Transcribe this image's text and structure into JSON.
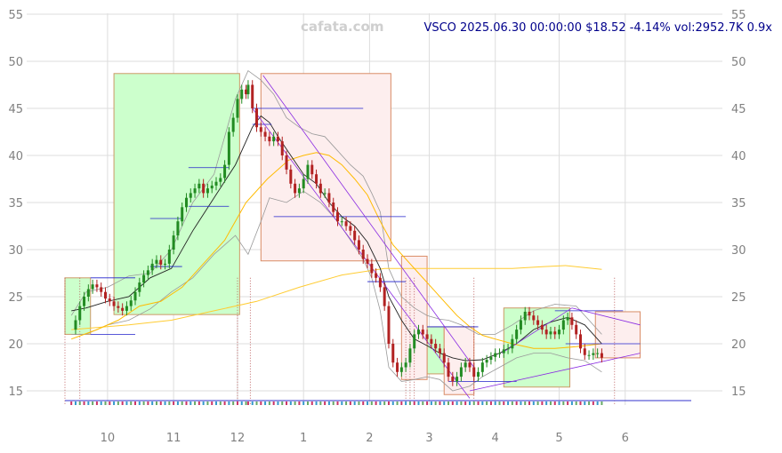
{
  "header": {
    "watermark": "cafata.com",
    "ticker_line": "VSCO 2025.06.30 00:00:00 $18.52 -4.14% vol:2952.7K 0.9x"
  },
  "chart_data": {
    "type": "candlestick",
    "y_range": [
      13,
      55
    ],
    "y_ticks": [
      15,
      20,
      25,
      30,
      35,
      40,
      45,
      50,
      55
    ],
    "x_ticks": [
      {
        "label": "10",
        "day": 20
      },
      {
        "label": "11",
        "day": 51
      },
      {
        "label": "12",
        "day": 81
      },
      {
        "label": "1",
        "day": 112
      },
      {
        "label": "2",
        "day": 143
      },
      {
        "label": "3",
        "day": 171
      },
      {
        "label": "4",
        "day": 202
      },
      {
        "label": "5",
        "day": 232
      },
      {
        "label": "6",
        "day": 263
      }
    ],
    "x_domain": [
      0,
      294
    ],
    "grid": true,
    "close_series": [
      [
        3,
        21.5
      ],
      [
        5,
        22.5
      ],
      [
        7,
        24
      ],
      [
        9,
        25
      ],
      [
        11,
        25.8
      ],
      [
        13,
        26.3
      ],
      [
        15,
        26
      ],
      [
        17,
        25.5
      ],
      [
        19,
        24.8
      ],
      [
        21,
        24.5
      ],
      [
        23,
        24
      ],
      [
        25,
        23.8
      ],
      [
        27,
        23.5
      ],
      [
        29,
        24
      ],
      [
        31,
        24.6
      ],
      [
        33,
        25.5
      ],
      [
        35,
        26.5
      ],
      [
        37,
        27.3
      ],
      [
        39,
        27.8
      ],
      [
        41,
        28.5
      ],
      [
        43,
        28.9
      ],
      [
        45,
        28.4
      ],
      [
        47,
        28.5
      ],
      [
        49,
        30
      ],
      [
        51,
        31.5
      ],
      [
        53,
        33
      ],
      [
        55,
        34.5
      ],
      [
        57,
        35.5
      ],
      [
        59,
        36
      ],
      [
        61,
        36.5
      ],
      [
        63,
        37
      ],
      [
        65,
        36
      ],
      [
        67,
        36.5
      ],
      [
        69,
        36.8
      ],
      [
        71,
        37.2
      ],
      [
        73,
        37.6
      ],
      [
        75,
        39
      ],
      [
        77,
        42.5
      ],
      [
        79,
        44
      ],
      [
        81,
        46
      ],
      [
        83,
        47
      ],
      [
        85,
        46.5
      ],
      [
        86,
        47.5
      ],
      [
        88,
        45
      ],
      [
        90,
        43
      ],
      [
        92,
        42.5
      ],
      [
        94,
        42
      ],
      [
        96,
        41.5
      ],
      [
        98,
        42
      ],
      [
        100,
        41.5
      ],
      [
        102,
        40
      ],
      [
        104,
        38.5
      ],
      [
        106,
        37
      ],
      [
        108,
        36
      ],
      [
        110,
        36.5
      ],
      [
        112,
        37.5
      ],
      [
        114,
        39
      ],
      [
        116,
        38
      ],
      [
        118,
        37
      ],
      [
        120,
        36
      ],
      [
        122,
        36
      ],
      [
        124,
        35
      ],
      [
        126,
        34
      ],
      [
        128,
        33
      ],
      [
        130,
        33
      ],
      [
        132,
        32.5
      ],
      [
        134,
        32
      ],
      [
        136,
        31
      ],
      [
        138,
        30
      ],
      [
        140,
        29
      ],
      [
        142,
        28.5
      ],
      [
        144,
        27.5
      ],
      [
        146,
        27
      ],
      [
        148,
        26
      ],
      [
        150,
        24
      ],
      [
        152,
        20
      ],
      [
        154,
        18
      ],
      [
        156,
        17
      ],
      [
        158,
        17.5
      ],
      [
        160,
        18
      ],
      [
        162,
        19.5
      ],
      [
        164,
        21
      ],
      [
        166,
        21.5
      ],
      [
        168,
        21
      ],
      [
        170,
        20.5
      ],
      [
        172,
        20
      ],
      [
        174,
        19.5
      ],
      [
        176,
        19
      ],
      [
        178,
        18
      ],
      [
        180,
        16.5
      ],
      [
        182,
        16
      ],
      [
        184,
        16.5
      ],
      [
        186,
        17.5
      ],
      [
        188,
        18
      ],
      [
        190,
        17.5
      ],
      [
        192,
        16.5
      ],
      [
        194,
        17
      ],
      [
        196,
        18
      ],
      [
        198,
        18.3
      ],
      [
        200,
        18.6
      ],
      [
        202,
        19
      ],
      [
        204,
        19
      ],
      [
        206,
        19.4
      ],
      [
        208,
        19.5
      ],
      [
        210,
        20.5
      ],
      [
        212,
        21.5
      ],
      [
        214,
        22.5
      ],
      [
        216,
        23.4
      ],
      [
        218,
        23
      ],
      [
        220,
        22.5
      ],
      [
        222,
        22
      ],
      [
        224,
        21.5
      ],
      [
        226,
        21
      ],
      [
        228,
        21.3
      ],
      [
        230,
        21
      ],
      [
        232,
        21.5
      ],
      [
        234,
        22.5
      ],
      [
        236,
        22.8
      ],
      [
        238,
        22
      ],
      [
        240,
        21
      ],
      [
        242,
        19.5
      ],
      [
        244,
        18.8
      ],
      [
        246,
        18.8
      ],
      [
        248,
        19
      ],
      [
        250,
        19
      ],
      [
        252,
        18.52
      ]
    ],
    "ma_black": [
      [
        3,
        23.5
      ],
      [
        10,
        23.8
      ],
      [
        20,
        24.5
      ],
      [
        30,
        25
      ],
      [
        40,
        27
      ],
      [
        50,
        28
      ],
      [
        60,
        32
      ],
      [
        70,
        35.5
      ],
      [
        80,
        39
      ],
      [
        88,
        43
      ],
      [
        92,
        44.2
      ],
      [
        96,
        43.5
      ],
      [
        100,
        42
      ],
      [
        106,
        40
      ],
      [
        112,
        38
      ],
      [
        118,
        37
      ],
      [
        124,
        35
      ],
      [
        130,
        33.5
      ],
      [
        136,
        32.5
      ],
      [
        142,
        30.8
      ],
      [
        148,
        28
      ],
      [
        152,
        25
      ],
      [
        158,
        22.5
      ],
      [
        164,
        20.5
      ],
      [
        170,
        19.8
      ],
      [
        176,
        19
      ],
      [
        182,
        18.5
      ],
      [
        188,
        18.2
      ],
      [
        196,
        18.3
      ],
      [
        204,
        19
      ],
      [
        212,
        20
      ],
      [
        220,
        21.5
      ],
      [
        228,
        22.3
      ],
      [
        236,
        22.8
      ],
      [
        244,
        22
      ],
      [
        252,
        20
      ]
    ],
    "ma_orange": [
      [
        3,
        20.5
      ],
      [
        15,
        21.5
      ],
      [
        25,
        22.5
      ],
      [
        35,
        24
      ],
      [
        45,
        24.5
      ],
      [
        55,
        26
      ],
      [
        65,
        28.5
      ],
      [
        75,
        31
      ],
      [
        85,
        35
      ],
      [
        95,
        37.5
      ],
      [
        105,
        39.5
      ],
      [
        112,
        40
      ],
      [
        118,
        40.3
      ],
      [
        124,
        40
      ],
      [
        130,
        39
      ],
      [
        136,
        37.5
      ],
      [
        142,
        35.8
      ],
      [
        148,
        33
      ],
      [
        154,
        30.5
      ],
      [
        160,
        29
      ],
      [
        166,
        27.5
      ],
      [
        172,
        26
      ],
      [
        178,
        24.5
      ],
      [
        184,
        23
      ],
      [
        190,
        21.8
      ],
      [
        196,
        20.9
      ],
      [
        202,
        20.5
      ],
      [
        210,
        20
      ],
      [
        220,
        19.5
      ],
      [
        230,
        19.5
      ],
      [
        240,
        19.7
      ],
      [
        252,
        20
      ]
    ],
    "ma_yellow": [
      [
        3,
        21.5
      ],
      [
        30,
        22
      ],
      [
        50,
        22.5
      ],
      [
        70,
        23.5
      ],
      [
        90,
        24.5
      ],
      [
        110,
        26
      ],
      [
        130,
        27.3
      ],
      [
        150,
        28
      ],
      [
        170,
        28
      ],
      [
        190,
        28
      ],
      [
        210,
        28
      ],
      [
        225,
        28.2
      ],
      [
        235,
        28.3
      ],
      [
        252,
        27.9
      ]
    ],
    "upper_band": [
      [
        3,
        23
      ],
      [
        10,
        25.5
      ],
      [
        20,
        26
      ],
      [
        30,
        27.2
      ],
      [
        40,
        27.5
      ],
      [
        50,
        30
      ],
      [
        60,
        35
      ],
      [
        70,
        38
      ],
      [
        80,
        46
      ],
      [
        86,
        49
      ],
      [
        92,
        48
      ],
      [
        98,
        46.5
      ],
      [
        104,
        44
      ],
      [
        110,
        43
      ],
      [
        116,
        42.3
      ],
      [
        122,
        42
      ],
      [
        128,
        40.5
      ],
      [
        134,
        39
      ],
      [
        140,
        37.8
      ],
      [
        144,
        36
      ],
      [
        148,
        34
      ],
      [
        152,
        28
      ],
      [
        158,
        25
      ],
      [
        164,
        23.8
      ],
      [
        170,
        23
      ],
      [
        176,
        22.6
      ],
      [
        180,
        22.5
      ],
      [
        186,
        22
      ],
      [
        194,
        21
      ],
      [
        202,
        21
      ],
      [
        210,
        22
      ],
      [
        220,
        23.5
      ],
      [
        230,
        24.2
      ],
      [
        240,
        24
      ],
      [
        246,
        22.5
      ],
      [
        252,
        21
      ]
    ],
    "lower_band": [
      [
        3,
        21
      ],
      [
        10,
        21
      ],
      [
        20,
        22
      ],
      [
        30,
        22.5
      ],
      [
        40,
        23.7
      ],
      [
        50,
        25.5
      ],
      [
        60,
        27
      ],
      [
        70,
        29.5
      ],
      [
        80,
        31.5
      ],
      [
        86,
        29.5
      ],
      [
        92,
        33
      ],
      [
        96,
        35.5
      ],
      [
        104,
        35
      ],
      [
        112,
        36.2
      ],
      [
        120,
        35
      ],
      [
        128,
        33
      ],
      [
        134,
        31
      ],
      [
        140,
        29
      ],
      [
        144,
        27
      ],
      [
        148,
        23.5
      ],
      [
        152,
        17.5
      ],
      [
        158,
        16
      ],
      [
        164,
        16.2
      ],
      [
        170,
        16.5
      ],
      [
        176,
        16.2
      ],
      [
        182,
        15
      ],
      [
        190,
        15.5
      ],
      [
        196,
        16.5
      ],
      [
        204,
        17.5
      ],
      [
        212,
        18.5
      ],
      [
        220,
        19
      ],
      [
        228,
        19
      ],
      [
        236,
        18.5
      ],
      [
        244,
        18.2
      ],
      [
        252,
        17
      ]
    ],
    "green_zones": [
      {
        "d0": 0,
        "d1": 12,
        "y0": 21,
        "y1": 27
      },
      {
        "d0": 23,
        "d1": 82,
        "y0": 23.1,
        "y1": 48.7
      },
      {
        "d0": 170,
        "d1": 178,
        "y0": 16.8,
        "y1": 21.8
      },
      {
        "d0": 206,
        "d1": 237,
        "y0": 15.4,
        "y1": 23.8
      }
    ],
    "red_zones": [
      {
        "d0": 92,
        "d1": 153,
        "y0": 28.8,
        "y1": 48.7
      },
      {
        "d0": 158,
        "d1": 170,
        "y0": 16.2,
        "y1": 29.3
      },
      {
        "d0": 178,
        "d1": 192,
        "y0": 14.6,
        "y1": 21.8
      },
      {
        "d0": 249,
        "d1": 270,
        "y0": 18.5,
        "y1": 23.4
      }
    ],
    "blue_levels": [
      {
        "d0": 12,
        "d1": 33,
        "y": 21
      },
      {
        "d0": 12,
        "d1": 33,
        "y": 27
      },
      {
        "d0": 40,
        "d1": 55,
        "y": 28.2
      },
      {
        "d0": 40,
        "d1": 55,
        "y": 33.3
      },
      {
        "d0": 58,
        "d1": 77,
        "y": 38.7
      },
      {
        "d0": 58,
        "d1": 77,
        "y": 34.6
      },
      {
        "d0": 88,
        "d1": 140,
        "y": 45
      },
      {
        "d0": 88,
        "d1": 97,
        "y": 43.3
      },
      {
        "d0": 98,
        "d1": 160,
        "y": 33.5
      },
      {
        "d0": 142,
        "d1": 160,
        "y": 26.6
      },
      {
        "d0": 170,
        "d1": 194,
        "y": 21.8
      },
      {
        "d0": 180,
        "d1": 212,
        "y": 16
      },
      {
        "d0": 235,
        "d1": 270,
        "y": 20
      },
      {
        "d0": 230,
        "d1": 262,
        "y": 23.5
      }
    ],
    "purple_lines": [
      {
        "d0": 93,
        "y0": 48.5,
        "d1": 192,
        "y1": 17.5
      },
      {
        "d0": 88,
        "y0": 45,
        "d1": 190,
        "y1": 14.2
      },
      {
        "d0": 190,
        "y0": 15,
        "d1": 270,
        "y1": 19
      },
      {
        "d0": 205,
        "y0": 19,
        "d1": 238,
        "y1": 23.8
      },
      {
        "d0": 238,
        "y0": 23.8,
        "d1": 270,
        "y1": 22
      }
    ],
    "event_lines": [
      0,
      7,
      81,
      87,
      160,
      162,
      164,
      192,
      258
    ]
  }
}
